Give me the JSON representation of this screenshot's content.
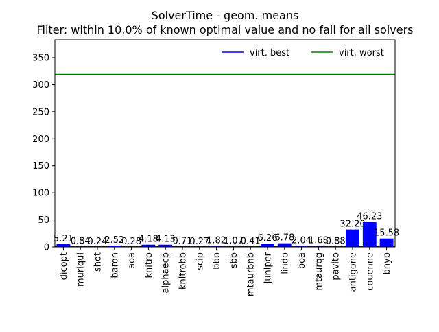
{
  "chart_data": {
    "type": "bar",
    "title": "SolverTime - geom. means",
    "subtitle": "Filter: within 10.0% of known optimal value and no fail for all solvers",
    "xlabel": "",
    "ylabel": "",
    "ylim": [
      0,
      383
    ],
    "yticks": [
      0,
      50,
      100,
      150,
      200,
      250,
      300,
      350
    ],
    "grid": false,
    "legend_placement": "top-right",
    "bar_color": "#0000ff",
    "categories": [
      "dicopt",
      "muriqui",
      "shot",
      "baron",
      "aoa",
      "knitro",
      "alphaecp",
      "knitrobb",
      "scip",
      "bbb",
      "sbb",
      "mtaurbnb",
      "juniper",
      "lindo",
      "boa",
      "mtaurqg",
      "pavito",
      "antigone",
      "couenne",
      "bhyb"
    ],
    "values": [
      5.21,
      0.84,
      0.24,
      2.52,
      0.28,
      4.18,
      4.13,
      0.71,
      0.27,
      1.82,
      1.07,
      0.41,
      6.26,
      6.78,
      2.04,
      1.68,
      0.88,
      32.2,
      46.23,
      15.58
    ],
    "value_labels": [
      "5.21",
      "0.84",
      "0.24",
      "2.52",
      "0.28",
      "4.18",
      "4.13",
      "0.71",
      "0.27",
      "1.82",
      "1.07",
      "0.41",
      "6.26",
      "6.78",
      "2.04",
      "1.68",
      "0.88",
      "32.20",
      "46.23",
      "15.58"
    ],
    "reference_lines": [
      {
        "name": "virt. best",
        "value": 0.24,
        "color": "#0000ff"
      },
      {
        "name": "virt. worst",
        "value": 319,
        "color": "#008000"
      }
    ]
  }
}
